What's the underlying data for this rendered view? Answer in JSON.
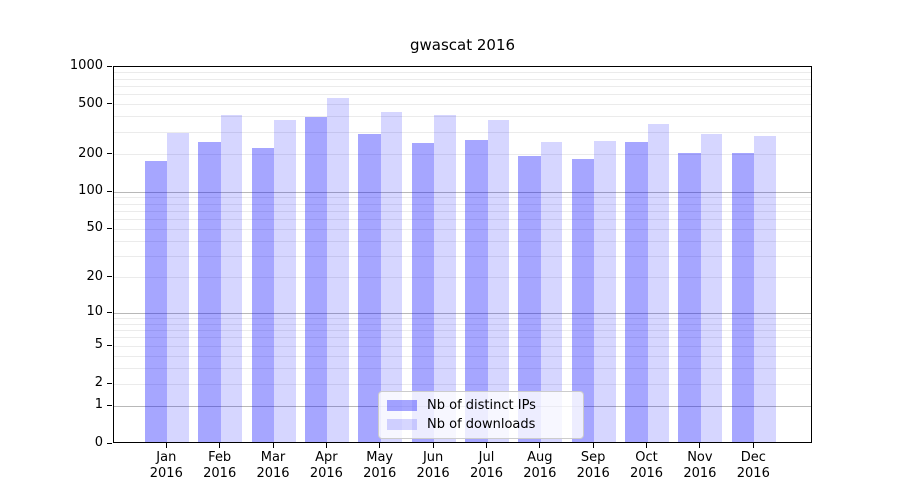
{
  "title": "gwascat 2016",
  "chart_data": {
    "type": "bar",
    "title": "gwascat 2016",
    "categories": [
      "Jan 2016",
      "Feb 2016",
      "Mar 2016",
      "Apr 2016",
      "May 2016",
      "Jun 2016",
      "Jul 2016",
      "Aug 2016",
      "Sep 2016",
      "Oct 2016",
      "Nov 2016",
      "Dec 2016"
    ],
    "series": [
      {
        "name": "Nb of distinct IPs",
        "color": "rgba(0,0,255,0.35)",
        "color_hex_on_white": "#a6a6ff",
        "values": [
          170,
          244,
          217,
          385,
          280,
          239,
          251,
          188,
          177,
          244,
          200,
          200
        ]
      },
      {
        "name": "Nb of downloads",
        "color": "rgba(0,0,255,0.16)",
        "color_hex_on_white": "#d6d6ff",
        "values": [
          287,
          400,
          362,
          543,
          420,
          397,
          362,
          243,
          248,
          337,
          280,
          272
        ]
      }
    ],
    "yscale": "log1p",
    "ylim": [
      0,
      1000
    ],
    "yticks": [
      0,
      1,
      2,
      5,
      10,
      20,
      50,
      100,
      200,
      500,
      1000
    ],
    "grid": true,
    "grid_minor_color": "#ebebeb",
    "grid_major_color": "#b8b8b8",
    "legend_position": "inside-bottom-center"
  }
}
